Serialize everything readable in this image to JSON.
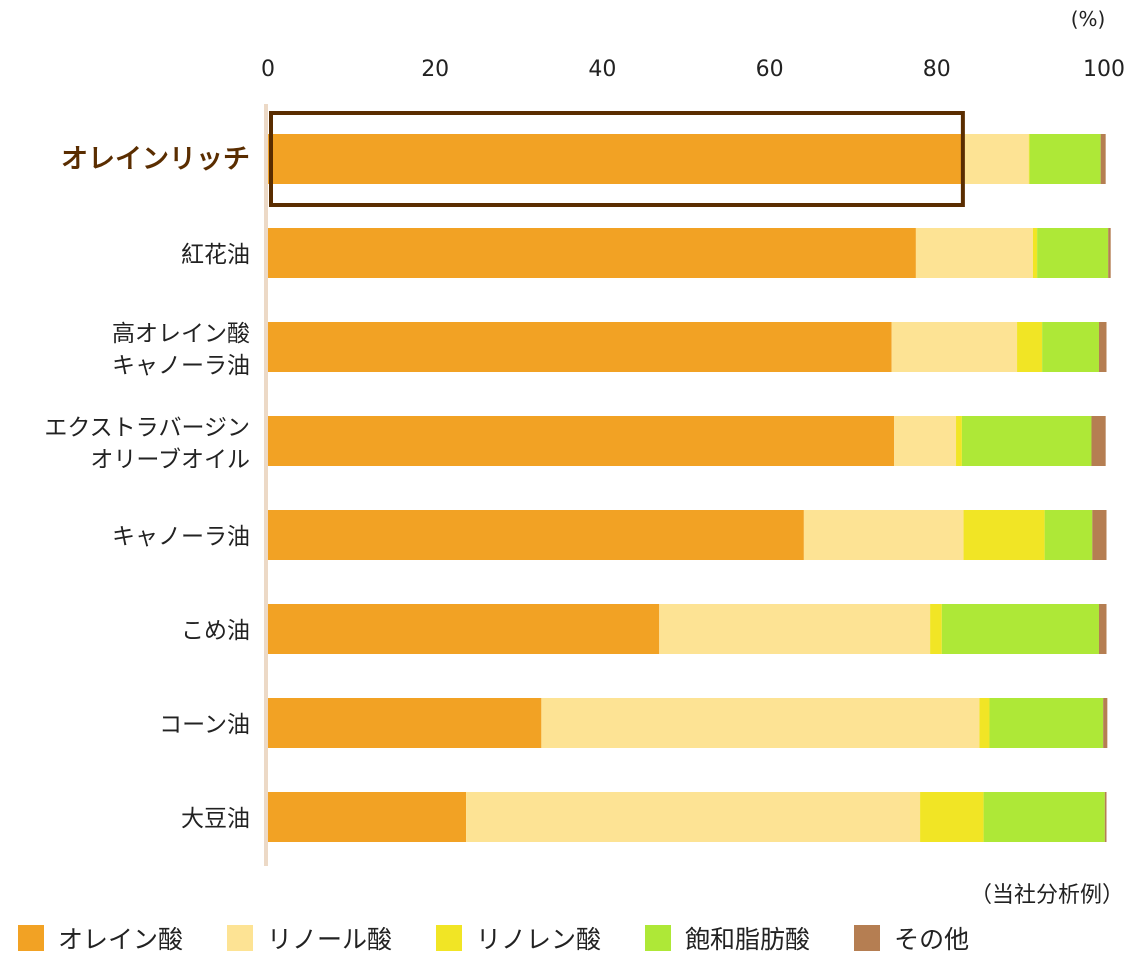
{
  "chart_data": {
    "type": "bar",
    "orientation": "horizontal",
    "stacked": true,
    "unit": "(%)",
    "note": "（当社分析例）",
    "xlim": [
      0,
      100
    ],
    "x_ticks": [
      "0",
      "20",
      "40",
      "60",
      "80",
      "100"
    ],
    "highlighted_category": "オレインリッチ",
    "categories": [
      [
        "オレインリッチ"
      ],
      [
        "紅花油"
      ],
      [
        "高オレイン酸",
        "キャノーラ油"
      ],
      [
        "エクストラバージン",
        "オリーブオイル"
      ],
      [
        "キャノーラ油"
      ],
      [
        "こめ油"
      ],
      [
        "コーン油"
      ],
      [
        "大豆油"
      ]
    ],
    "series": [
      {
        "name": "オレイン酸",
        "color": "#f2a224",
        "values": [
          83.0,
          77.5,
          74.6,
          74.9,
          64.1,
          46.8,
          32.7,
          23.7
        ]
      },
      {
        "name": "リノール酸",
        "color": "#fde394",
        "values": [
          8.0,
          14.0,
          15.0,
          7.4,
          19.1,
          32.4,
          52.4,
          54.3
        ]
      },
      {
        "name": "リノレン酸",
        "color": "#f1e525",
        "values": [
          0.1,
          0.5,
          3.0,
          0.7,
          9.7,
          1.4,
          1.2,
          7.6
        ]
      },
      {
        "name": "飽和脂肪酸",
        "color": "#aee837",
        "values": [
          8.5,
          8.5,
          6.8,
          15.5,
          5.7,
          18.8,
          13.6,
          14.5
        ]
      },
      {
        "name": "その他",
        "color": "#b57e52",
        "values": [
          0.6,
          0.3,
          0.9,
          1.7,
          1.7,
          0.9,
          0.5,
          0.2
        ]
      }
    ]
  }
}
